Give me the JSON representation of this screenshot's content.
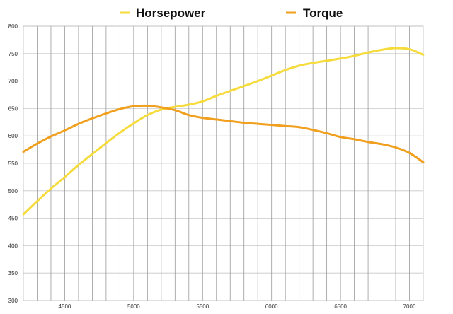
{
  "chart_data": {
    "type": "line",
    "xlim": [
      4200,
      7100
    ],
    "ylim": [
      300,
      800
    ],
    "x_ticks": [
      4500,
      5000,
      5500,
      6000,
      6500,
      7000
    ],
    "y_ticks": [
      300,
      350,
      400,
      450,
      500,
      550,
      600,
      650,
      700,
      750,
      800
    ],
    "vertical_grid_step": 100,
    "grid": true,
    "legend_position": "top",
    "series": [
      {
        "name": "Horsepower",
        "color": "#F5DC3C",
        "x": [
          4200,
          4300,
          4400,
          4500,
          4600,
          4700,
          4800,
          4900,
          5000,
          5100,
          5200,
          5300,
          5400,
          5500,
          5600,
          5700,
          5800,
          5900,
          6000,
          6100,
          6200,
          6300,
          6400,
          6500,
          6600,
          6700,
          6800,
          6900,
          7000,
          7100
        ],
        "y": [
          457,
          481,
          504,
          525,
          547,
          567,
          587,
          606,
          623,
          638,
          648,
          653,
          657,
          663,
          673,
          682,
          691,
          700,
          710,
          720,
          728,
          733,
          737,
          741,
          746,
          752,
          757,
          760,
          758,
          748
        ]
      },
      {
        "name": "Torque",
        "color": "#F0A01E",
        "x": [
          4200,
          4300,
          4400,
          4500,
          4600,
          4700,
          4800,
          4900,
          5000,
          5100,
          5200,
          5300,
          5400,
          5500,
          5600,
          5700,
          5800,
          5900,
          6000,
          6100,
          6200,
          6300,
          6400,
          6500,
          6600,
          6700,
          6800,
          6900,
          7000,
          7100
        ],
        "y": [
          571,
          586,
          599,
          610,
          622,
          632,
          641,
          649,
          654,
          655,
          652,
          647,
          638,
          633,
          630,
          627,
          624,
          622,
          620,
          618,
          616,
          611,
          605,
          598,
          594,
          589,
          585,
          579,
          569,
          552
        ]
      }
    ]
  }
}
